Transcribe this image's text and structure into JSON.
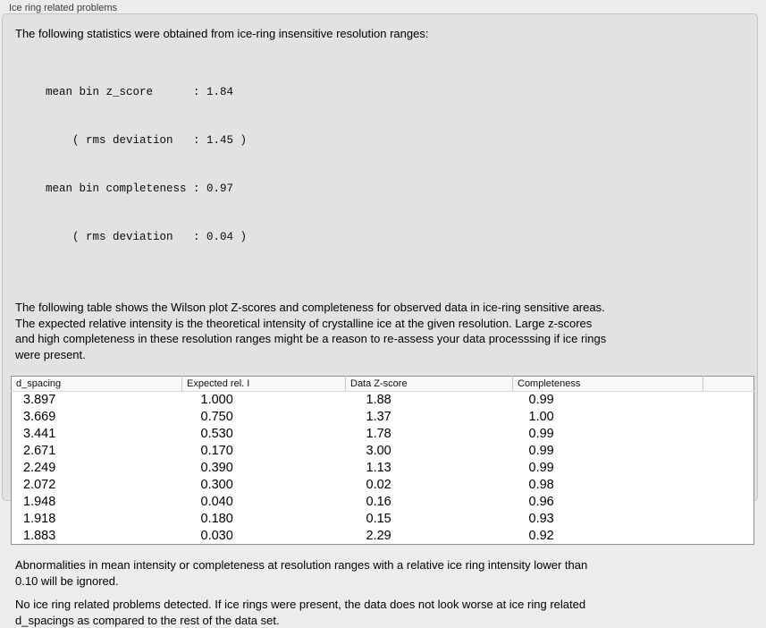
{
  "panel": {
    "title": "Ice ring related problems"
  },
  "intro": {
    "text": "The following statistics were obtained from ice-ring insensitive resolution ranges:"
  },
  "stats": {
    "lines": [
      "mean bin z_score      : 1.84",
      "    ( rms deviation   : 1.45 )",
      "mean bin completeness : 0.97",
      "    ( rms deviation   : 0.04 )"
    ],
    "mean_bin_z_score": "1.84",
    "z_score_rms_deviation": "1.45",
    "mean_bin_completeness": "0.97",
    "completeness_rms_deviation": "0.04"
  },
  "table_intro": {
    "lines": [
      "The following table shows the Wilson plot Z-scores and completeness for observed data in ice-ring sensitive areas.",
      "The expected relative intensity is the theoretical intensity of crystalline ice at the given resolution. Large z-scores",
      "and high completeness in these resolution ranges might be a reason to re-assess your data processsing if ice rings",
      "were present."
    ]
  },
  "table": {
    "headers": [
      "d_spacing",
      "Expected rel. I",
      "Data Z-score",
      "Completeness",
      ""
    ],
    "rows": [
      [
        "3.897",
        "1.000",
        "1.88",
        "0.99"
      ],
      [
        "3.669",
        "0.750",
        "1.37",
        "1.00"
      ],
      [
        "3.441",
        "0.530",
        "1.78",
        "0.99"
      ],
      [
        "2.671",
        "0.170",
        "3.00",
        "0.99"
      ],
      [
        "2.249",
        "0.390",
        "1.13",
        "0.99"
      ],
      [
        "2.072",
        "0.300",
        "0.02",
        "0.98"
      ],
      [
        "1.948",
        "0.040",
        "0.16",
        "0.96"
      ],
      [
        "1.918",
        "0.180",
        "0.15",
        "0.93"
      ],
      [
        "1.883",
        "0.030",
        "2.29",
        "0.92"
      ]
    ]
  },
  "notes": {
    "ignore_lines": [
      "Abnormalities in mean intensity or completeness at resolution ranges with a relative ice ring intensity lower than",
      "0.10 will be ignored."
    ],
    "conclusion_lines": [
      "No ice ring related problems detected. If ice rings were present, the data does not look worse at ice ring related",
      "d_spacings as compared to the rest of the data set."
    ]
  },
  "colors": {
    "page_background": "#ececec",
    "groupbox_background": "#e2e2e2",
    "groupbox_border": "#c5c5c5",
    "table_background": "#ffffff",
    "table_border": "#8f8f8f",
    "table_header_background": "#f8f8f8",
    "text": "#000000"
  }
}
